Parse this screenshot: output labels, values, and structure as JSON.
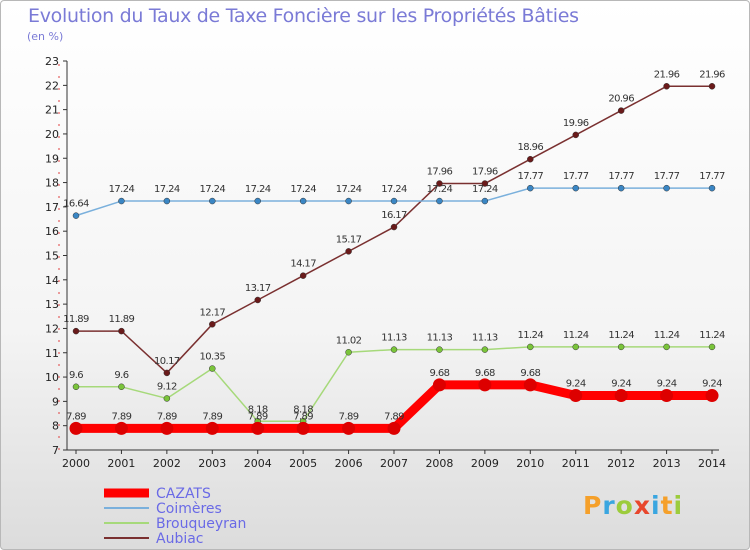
{
  "header": {
    "title": "Evolution du Taux de Taxe Foncière sur les Propriétés Bâties",
    "unit": "(en %)"
  },
  "logo": {
    "text": "Proxiti",
    "letters": [
      {
        "ch": "P",
        "color": "#f5a02a"
      },
      {
        "ch": "r",
        "color": "#3aa6e0"
      },
      {
        "ch": "o",
        "color": "#9ccc3c"
      },
      {
        "ch": "x",
        "color": "#e8462c"
      },
      {
        "ch": "i",
        "color": "#3aa6e0"
      },
      {
        "ch": "t",
        "color": "#f5a02a"
      },
      {
        "ch": "i",
        "color": "#9ccc3c"
      }
    ]
  },
  "chart_data": {
    "type": "line",
    "title": "Evolution du Taux de Taxe Foncière sur les Propriétés Bâties",
    "ylabel": "(en %)",
    "xlabel": "",
    "ylim": [
      7,
      23
    ],
    "yticks": [
      7,
      8,
      9,
      10,
      11,
      12,
      13,
      14,
      15,
      16,
      17,
      18,
      19,
      20,
      21,
      22,
      23
    ],
    "grid": false,
    "legend_position": "bottom-left",
    "categories": [
      "2000",
      "2001",
      "2002",
      "2003",
      "2004",
      "2005",
      "2006",
      "2007",
      "2008",
      "2009",
      "2010",
      "2011",
      "2012",
      "2013",
      "2014"
    ],
    "series": [
      {
        "name": "CAZATS",
        "color": "#ff0000",
        "marker": "#dd0000",
        "width": 9,
        "values": [
          7.89,
          7.89,
          7.89,
          7.89,
          7.89,
          7.89,
          7.89,
          7.89,
          9.68,
          9.68,
          9.68,
          9.24,
          9.24,
          9.24,
          9.24
        ],
        "labels": [
          "7.89",
          "7.89",
          "7.89",
          "7.89",
          "7.89",
          "7.89",
          "7.89",
          "7.89",
          "9.68",
          "9.68",
          "9.68",
          "9.24",
          "9.24",
          "9.24",
          "9.24"
        ]
      },
      {
        "name": "Coimères",
        "color": "#7ab0dc",
        "marker": "#3a86c4",
        "width": 1.5,
        "values": [
          16.64,
          17.24,
          17.24,
          17.24,
          17.24,
          17.24,
          17.24,
          17.24,
          17.24,
          17.24,
          17.77,
          17.77,
          17.77,
          17.77,
          17.77
        ],
        "labels": [
          "16.64",
          "17.24",
          "17.24",
          "17.24",
          "17.24",
          "17.24",
          "17.24",
          "17.24",
          "17.24",
          "17.24",
          "17.77",
          "17.77",
          "17.77",
          "17.77",
          "17.77"
        ]
      },
      {
        "name": "Brouqueyran",
        "color": "#a6d97a",
        "marker": "#7ac43a",
        "width": 1.5,
        "values": [
          9.6,
          9.6,
          9.12,
          10.35,
          8.18,
          8.18,
          11.02,
          11.13,
          11.13,
          11.13,
          11.24,
          11.24,
          11.24,
          11.24,
          11.24
        ],
        "labels": [
          "9.6",
          "9.6",
          "9.12",
          "10.35",
          "8.18",
          "8.18",
          "11.02",
          "11.13",
          "11.13",
          "11.13",
          "11.24",
          "11.24",
          "11.24",
          "11.24",
          "11.24"
        ]
      },
      {
        "name": "Aubiac",
        "color": "#7a3030",
        "marker": "#6a1a1a",
        "width": 1.5,
        "values": [
          11.89,
          11.89,
          10.17,
          12.17,
          13.17,
          14.17,
          15.17,
          16.17,
          17.96,
          17.96,
          18.96,
          19.96,
          20.96,
          21.96,
          21.96
        ],
        "labels": [
          "11.89",
          "11.89",
          "10.17",
          "12.17",
          "13.17",
          "14.17",
          "15.17",
          "16.17",
          "17.96",
          "17.96",
          "18.96",
          "19.96",
          "20.96",
          "21.96",
          "21.96"
        ]
      }
    ]
  }
}
